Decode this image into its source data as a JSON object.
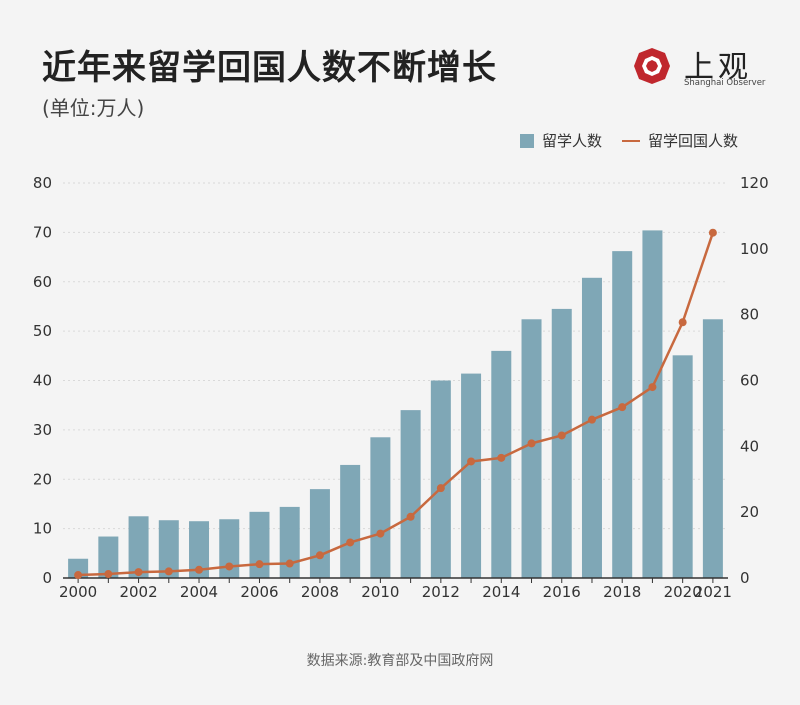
{
  "header": {
    "title": "近年来留学回国人数不断增长",
    "unit": "(单位:万人)"
  },
  "logo": {
    "name": "上观",
    "subtitle": "Shanghai Observer",
    "color": "#c0272d"
  },
  "legend": {
    "bar_label": "留学人数",
    "line_label": "留学回国人数"
  },
  "source": "数据来源:教育部及中国政府网",
  "colors": {
    "bar": "#7fa7b6",
    "line": "#c8693f",
    "grid": "#d9d9d9",
    "axis": "#333333"
  },
  "chart_data": {
    "type": "bar+line",
    "title": "近年来留学回国人数不断增长",
    "unit": "万人",
    "x": [
      2000,
      2001,
      2002,
      2003,
      2004,
      2005,
      2006,
      2007,
      2008,
      2009,
      2010,
      2011,
      2012,
      2013,
      2014,
      2015,
      2016,
      2017,
      2018,
      2019,
      2020,
      2021
    ],
    "x_tick_labels": [
      "2000",
      "2002",
      "2004",
      "2006",
      "2008",
      "2010",
      "2012",
      "2014",
      "2016",
      "2018",
      "2020",
      "2021"
    ],
    "series": [
      {
        "name": "留学人数",
        "type": "bar",
        "axis": "left",
        "values": [
          3.9,
          8.4,
          12.5,
          11.7,
          11.5,
          11.9,
          13.4,
          14.4,
          18.0,
          22.9,
          28.5,
          34.0,
          40.0,
          41.4,
          46.0,
          52.4,
          54.5,
          60.8,
          66.2,
          70.4,
          45.1,
          52.4
        ]
      },
      {
        "name": "留学回国人数",
        "type": "line",
        "axis": "right",
        "values": [
          0.9,
          1.2,
          1.8,
          2.0,
          2.5,
          3.5,
          4.2,
          4.4,
          6.9,
          10.8,
          13.5,
          18.6,
          27.3,
          35.4,
          36.5,
          40.9,
          43.3,
          48.1,
          51.9,
          58.0,
          77.7,
          104.9
        ]
      }
    ],
    "y_left": {
      "range": [
        0,
        80
      ],
      "ticks": [
        0,
        10,
        20,
        30,
        40,
        50,
        60,
        70,
        80
      ]
    },
    "y_right": {
      "range": [
        0,
        120
      ],
      "ticks": [
        0,
        20,
        40,
        60,
        80,
        100,
        120
      ]
    },
    "legend_position": "top-right",
    "grid": true
  }
}
